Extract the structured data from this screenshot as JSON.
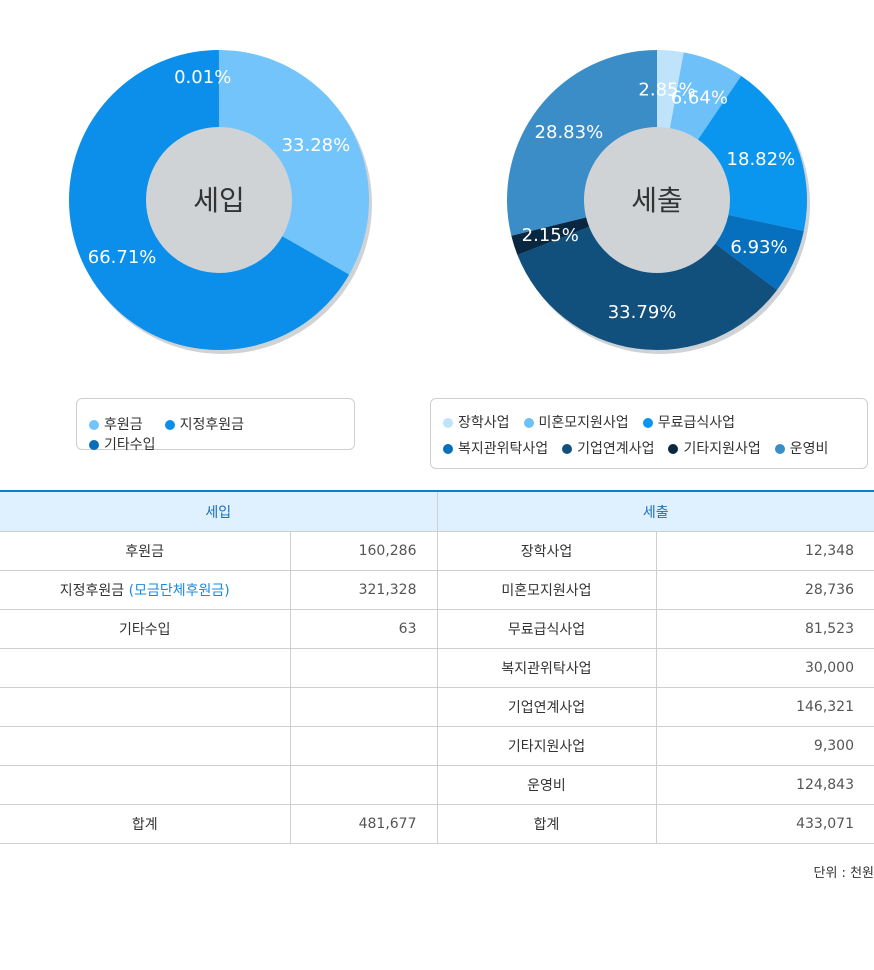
{
  "chart_data": [
    {
      "type": "pie",
      "center_label": "세입",
      "slices": [
        {
          "name": "후원금",
          "value": 33.28,
          "label": "33.28%",
          "color": "#72c4fb"
        },
        {
          "name": "지정후원금",
          "value": 66.71,
          "label": "66.71%",
          "color": "#0c8fea"
        },
        {
          "name": "기타수입",
          "value": 0.01,
          "label": "0.01%",
          "color": "#0a6db8"
        }
      ]
    },
    {
      "type": "pie",
      "center_label": "세출",
      "slices": [
        {
          "name": "장학사업",
          "value": 2.85,
          "label": "2.85%",
          "color": "#bfe3fb"
        },
        {
          "name": "미혼모지원사업",
          "value": 6.64,
          "label": "6.64%",
          "color": "#6ec0f8"
        },
        {
          "name": "무료급식사업",
          "value": 18.82,
          "label": "18.82%",
          "color": "#0a95ef"
        },
        {
          "name": "복지관위탁사업",
          "value": 6.93,
          "label": "6.93%",
          "color": "#0670bf"
        },
        {
          "name": "기업연계사업",
          "value": 33.79,
          "label": "33.79%",
          "color": "#114f7d"
        },
        {
          "name": "기타지원사업",
          "value": 2.15,
          "label": "2.15%",
          "color": "#0a2742"
        },
        {
          "name": "운영비",
          "value": 28.83,
          "label": "28.83%",
          "color": "#3a8dc7"
        }
      ]
    }
  ],
  "legend_income": [
    {
      "label": "후원금",
      "color": "#72c4fb"
    },
    {
      "label": "지정후원금",
      "color": "#0c8fea"
    },
    {
      "label": "기타수입",
      "color": "#0a6db8"
    }
  ],
  "legend_expense": [
    {
      "label": "장학사업",
      "color": "#bfe3fb"
    },
    {
      "label": "미혼모지원사업",
      "color": "#6ec0f8"
    },
    {
      "label": "무료급식사업",
      "color": "#0a95ef"
    },
    {
      "label": "복지관위탁사업",
      "color": "#0670bf"
    },
    {
      "label": "기업연계사업",
      "color": "#114f7d"
    },
    {
      "label": "기타지원사업",
      "color": "#0a2742"
    },
    {
      "label": "운영비",
      "color": "#3a8dc7"
    }
  ],
  "table": {
    "header_income": "세입",
    "header_expense": "세출",
    "rows": [
      {
        "in_name": "후원금",
        "in_sub": "",
        "in_val": "160,286",
        "ex_name": "장학사업",
        "ex_val": "12,348"
      },
      {
        "in_name": "지정후원금 ",
        "in_sub": "(모금단체후원금)",
        "in_val": "321,328",
        "ex_name": "미혼모지원사업",
        "ex_val": "28,736"
      },
      {
        "in_name": "기타수입",
        "in_sub": "",
        "in_val": "63",
        "ex_name": "무료급식사업",
        "ex_val": "81,523"
      },
      {
        "in_name": "",
        "in_sub": "",
        "in_val": "",
        "ex_name": "복지관위탁사업",
        "ex_val": "30,000"
      },
      {
        "in_name": "",
        "in_sub": "",
        "in_val": "",
        "ex_name": "기업연계사업",
        "ex_val": "146,321"
      },
      {
        "in_name": "",
        "in_sub": "",
        "in_val": "",
        "ex_name": "기타지원사업",
        "ex_val": "9,300"
      },
      {
        "in_name": "",
        "in_sub": "",
        "in_val": "",
        "ex_name": "운영비",
        "ex_val": "124,843"
      },
      {
        "in_name": "합계",
        "in_sub": "",
        "in_val": "481,677",
        "ex_name": "합계",
        "ex_val": "433,071"
      }
    ]
  },
  "unit_note": "단위 : 천원"
}
